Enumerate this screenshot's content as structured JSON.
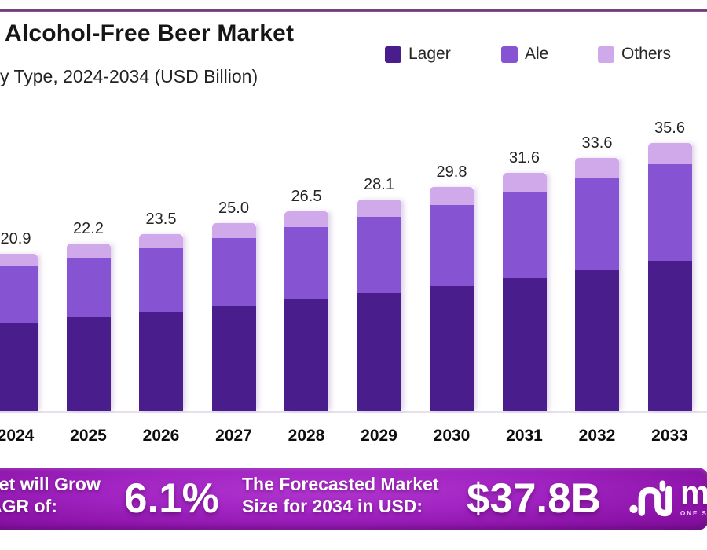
{
  "page": {
    "title": "Alcohol-Free Beer Market",
    "subtitle": "y Type, 2024-2034 (USD Billion)"
  },
  "legend": {
    "items": [
      {
        "label": "Lager",
        "color": "#4a1d8c"
      },
      {
        "label": "Ale",
        "color": "#8654d2"
      },
      {
        "label": "Others",
        "color": "#cfa9ea"
      }
    ]
  },
  "chart_data": {
    "type": "bar",
    "stacked": true,
    "title": "Alcohol-Free Beer Market",
    "subtitle": "y Type, 2024-2034 (USD Billion)",
    "ylabel": "USD Billion",
    "ylim": [
      0,
      38
    ],
    "grid": false,
    "legend_position": "top-right",
    "categories": [
      "2024",
      "2025",
      "2026",
      "2027",
      "2028",
      "2029",
      "2030",
      "2031",
      "2032",
      "2033"
    ],
    "series": [
      {
        "name": "Lager",
        "color": "#4a1d8c",
        "values": [
          11.7,
          12.4,
          13.1,
          14.0,
          14.8,
          15.7,
          16.6,
          17.6,
          18.8,
          19.9
        ]
      },
      {
        "name": "Ale",
        "color": "#8654d2",
        "values": [
          7.5,
          8.0,
          8.5,
          9.0,
          9.6,
          10.1,
          10.8,
          11.4,
          12.1,
          12.9
        ]
      },
      {
        "name": "Others",
        "color": "#cfa9ea",
        "values": [
          1.7,
          1.8,
          1.9,
          2.0,
          2.1,
          2.3,
          2.4,
          2.6,
          2.7,
          2.8
        ]
      }
    ],
    "totals": [
      20.9,
      22.2,
      23.5,
      25.0,
      26.5,
      28.1,
      29.8,
      31.6,
      33.6,
      35.6
    ]
  },
  "banner": {
    "left_line1": "ket will Grow",
    "left_line2": "AGR of:",
    "cagr_value": "6.1%",
    "mid_line1": "The Forecasted Market",
    "mid_line2": "Size for 2034 in USD:",
    "forecast_value": "$37.8B",
    "logo_text": "ma",
    "logo_tagline": "ONE STO"
  },
  "colors": {
    "lager": "#4a1d8c",
    "ale": "#8654d2",
    "others": "#cfa9ea",
    "banner_center": "#a124c2",
    "banner_edge": "#7a0d95",
    "top_line": "#5e2b66",
    "axis_line": "#e7e1ec",
    "text": "#161616"
  }
}
